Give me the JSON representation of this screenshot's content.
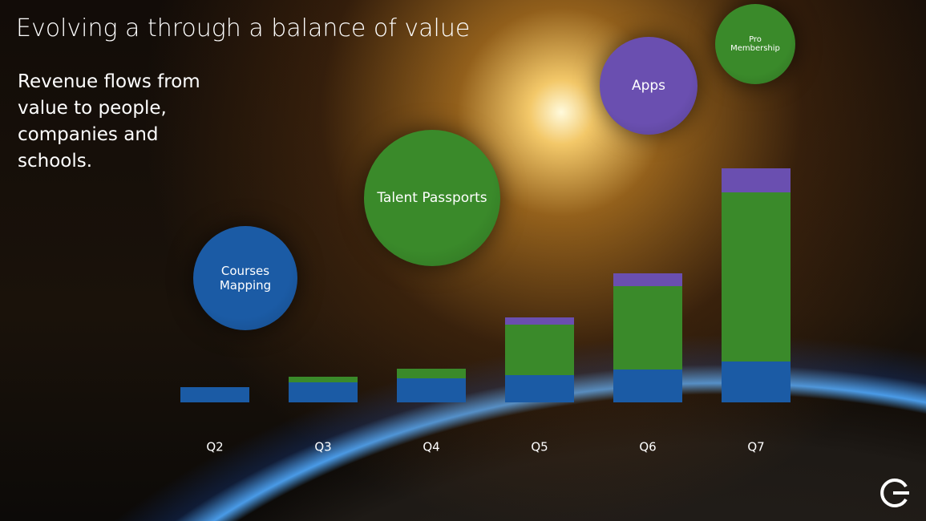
{
  "title": "Evolving a through a balance of value",
  "subtitle": "Revenue flows from value to people, companies and schools.",
  "chart_data": {
    "type": "stacked-bar",
    "categories": [
      "Q2",
      "Q3",
      "Q4",
      "Q5",
      "Q6",
      "Q7"
    ],
    "series": [
      {
        "name": "Courses Mapping",
        "color": "#1b5ba5",
        "values": [
          19,
          25,
          30,
          34,
          41,
          51
        ]
      },
      {
        "name": "Talent Passports",
        "color": "#3a8a2a",
        "values": [
          0,
          7,
          12,
          63,
          104,
          211
        ]
      },
      {
        "name": "Apps",
        "color": "#6a4fb0",
        "values": [
          0,
          0,
          0,
          9,
          16,
          30
        ]
      }
    ],
    "annotations": [
      {
        "text": "Pro Membership",
        "color": "#3a8a2a"
      }
    ],
    "ylim": [
      0,
      300
    ]
  }
}
